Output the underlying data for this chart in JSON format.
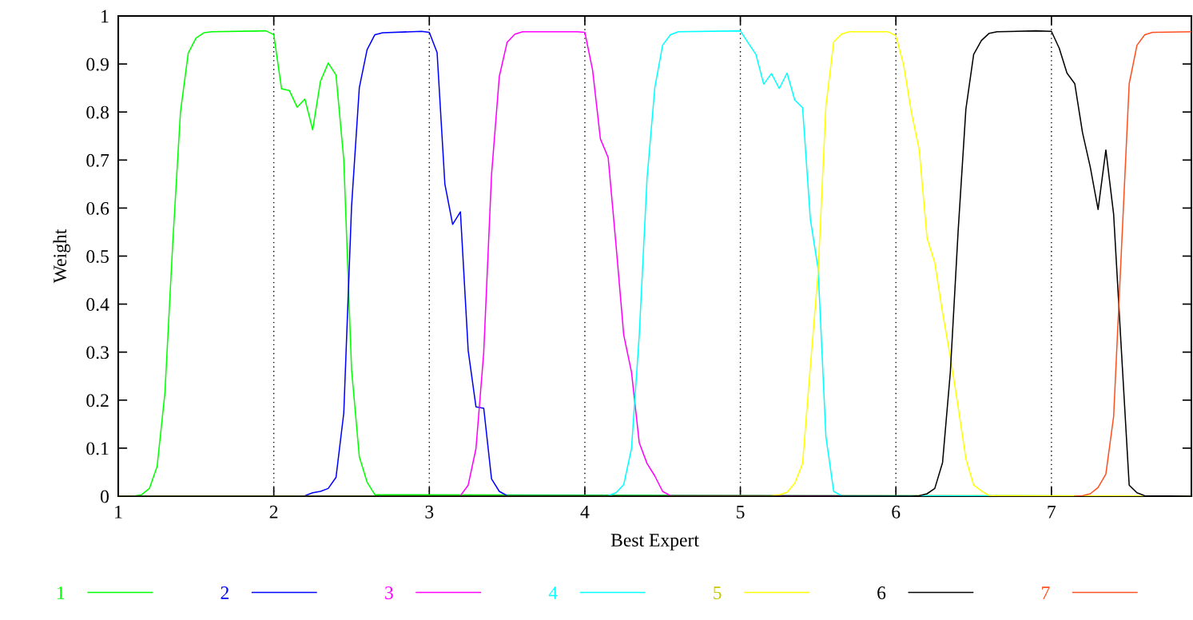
{
  "chart_data": {
    "type": "line",
    "xlabel": "Best Expert",
    "ylabel": "Weight",
    "xlim": [
      1,
      7.9
    ],
    "ylim": [
      0,
      1
    ],
    "xticks": [
      1,
      2,
      3,
      4,
      5,
      6,
      7
    ],
    "yticks": [
      0,
      0.1,
      0.2,
      0.3,
      0.4,
      0.5,
      0.6,
      0.7,
      0.8,
      0.9,
      1
    ],
    "grid": false,
    "legend": "bottom",
    "marker": "none",
    "line_style": "solid",
    "ref_lines": [
      {
        "axis": "x",
        "value": 2,
        "color": "#000000",
        "line_style": "dotted"
      },
      {
        "axis": "x",
        "value": 3,
        "color": "#000000",
        "line_style": "dotted"
      },
      {
        "axis": "x",
        "value": 4,
        "color": "#000000",
        "line_style": "dotted"
      },
      {
        "axis": "x",
        "value": 5,
        "color": "#000000",
        "line_style": "dotted"
      },
      {
        "axis": "x",
        "value": 6,
        "color": "#000000",
        "line_style": "dotted"
      },
      {
        "axis": "x",
        "value": 7,
        "color": "#000000",
        "line_style": "dotted"
      }
    ],
    "series": [
      {
        "name": "1",
        "color": "#00ff00",
        "x": [
          1,
          1.1,
          1.15,
          1.2,
          1.25,
          1.3,
          1.35,
          1.4,
          1.45,
          1.5,
          1.55,
          1.6,
          1.95,
          2.0,
          2.05,
          2.1,
          2.15,
          2.2,
          2.25,
          2.3,
          2.35,
          2.4,
          2.45,
          2.5,
          2.55,
          2.6,
          2.65,
          7.9
        ],
        "values": [
          0,
          0,
          0.003,
          0.016,
          0.062,
          0.215,
          0.525,
          0.8,
          0.923,
          0.954,
          0.965,
          0.967,
          0.969,
          0.961,
          0.848,
          0.845,
          0.81,
          0.827,
          0.763,
          0.864,
          0.902,
          0.877,
          0.701,
          0.264,
          0.082,
          0.029,
          0.003,
          0
        ]
      },
      {
        "name": "2",
        "color": "#0000ff",
        "x": [
          1,
          2.15,
          2.2,
          2.25,
          2.3,
          2.35,
          2.4,
          2.45,
          2.5,
          2.55,
          2.6,
          2.65,
          2.7,
          2.95,
          3.0,
          3.05,
          3.1,
          3.15,
          3.2,
          3.25,
          3.3,
          3.35,
          3.4,
          3.45,
          3.5,
          7.9
        ],
        "values": [
          0,
          0,
          0.001,
          0.007,
          0.01,
          0.016,
          0.039,
          0.173,
          0.603,
          0.851,
          0.93,
          0.961,
          0.965,
          0.968,
          0.966,
          0.924,
          0.65,
          0.566,
          0.592,
          0.303,
          0.186,
          0.183,
          0.036,
          0.01,
          0.001,
          0
        ]
      },
      {
        "name": "3",
        "color": "#ff00ff",
        "x": [
          1,
          3.15,
          3.2,
          3.25,
          3.3,
          3.35,
          3.4,
          3.45,
          3.5,
          3.55,
          3.6,
          3.95,
          4.0,
          4.05,
          4.1,
          4.15,
          4.2,
          4.25,
          4.3,
          4.35,
          4.4,
          4.45,
          4.5,
          4.55,
          7.9
        ],
        "values": [
          0,
          0,
          0.001,
          0.023,
          0.099,
          0.3,
          0.669,
          0.874,
          0.945,
          0.962,
          0.967,
          0.967,
          0.966,
          0.887,
          0.744,
          0.705,
          0.525,
          0.336,
          0.258,
          0.111,
          0.068,
          0.042,
          0.01,
          0.001,
          0
        ]
      },
      {
        "name": "4",
        "color": "#00ffff",
        "x": [
          1,
          4.1,
          4.15,
          4.2,
          4.25,
          4.3,
          4.35,
          4.4,
          4.45,
          4.5,
          4.55,
          4.6,
          5.0,
          5.05,
          5.1,
          5.15,
          5.2,
          5.25,
          5.3,
          5.35,
          5.4,
          5.45,
          5.5,
          5.55,
          5.6,
          5.65,
          7.9
        ],
        "values": [
          0,
          0,
          0.001,
          0.007,
          0.024,
          0.099,
          0.336,
          0.662,
          0.851,
          0.939,
          0.961,
          0.967,
          0.969,
          0.944,
          0.92,
          0.858,
          0.88,
          0.849,
          0.881,
          0.825,
          0.809,
          0.577,
          0.473,
          0.124,
          0.01,
          0.001,
          0
        ]
      },
      {
        "name": "5",
        "color": "#ffff00",
        "x": [
          1,
          5.15,
          5.2,
          5.25,
          5.3,
          5.35,
          5.4,
          5.45,
          5.5,
          5.55,
          5.6,
          5.65,
          5.7,
          5.95,
          6.0,
          6.05,
          6.1,
          6.15,
          6.2,
          6.25,
          6.3,
          6.35,
          6.4,
          6.45,
          6.5,
          6.55,
          6.6,
          7.9
        ],
        "values": [
          0,
          0,
          0.001,
          0.003,
          0.008,
          0.027,
          0.068,
          0.27,
          0.466,
          0.812,
          0.946,
          0.962,
          0.967,
          0.967,
          0.959,
          0.897,
          0.799,
          0.721,
          0.538,
          0.486,
          0.382,
          0.29,
          0.186,
          0.078,
          0.023,
          0.011,
          0.001,
          0
        ]
      },
      {
        "name": "6",
        "color": "#000000",
        "x": [
          1,
          6.1,
          6.15,
          6.2,
          6.25,
          6.3,
          6.35,
          6.4,
          6.45,
          6.5,
          6.55,
          6.6,
          6.65,
          6.9,
          7.0,
          7.05,
          7.1,
          7.15,
          7.2,
          7.25,
          7.3,
          7.35,
          7.4,
          7.45,
          7.5,
          7.55,
          7.6,
          7.9
        ],
        "values": [
          0,
          0,
          0.001,
          0.005,
          0.016,
          0.07,
          0.258,
          0.551,
          0.806,
          0.92,
          0.949,
          0.964,
          0.967,
          0.969,
          0.968,
          0.933,
          0.881,
          0.859,
          0.757,
          0.685,
          0.597,
          0.721,
          0.587,
          0.303,
          0.023,
          0.007,
          0.001,
          0
        ]
      },
      {
        "name": "7",
        "color": "#ff5020",
        "x": [
          7.15,
          7.2,
          7.25,
          7.3,
          7.35,
          7.4,
          7.45,
          7.5,
          7.55,
          7.6,
          7.65,
          7.9
        ],
        "values": [
          0,
          0.001,
          0.005,
          0.018,
          0.046,
          0.166,
          0.512,
          0.859,
          0.939,
          0.961,
          0.966,
          0.967
        ]
      }
    ]
  }
}
